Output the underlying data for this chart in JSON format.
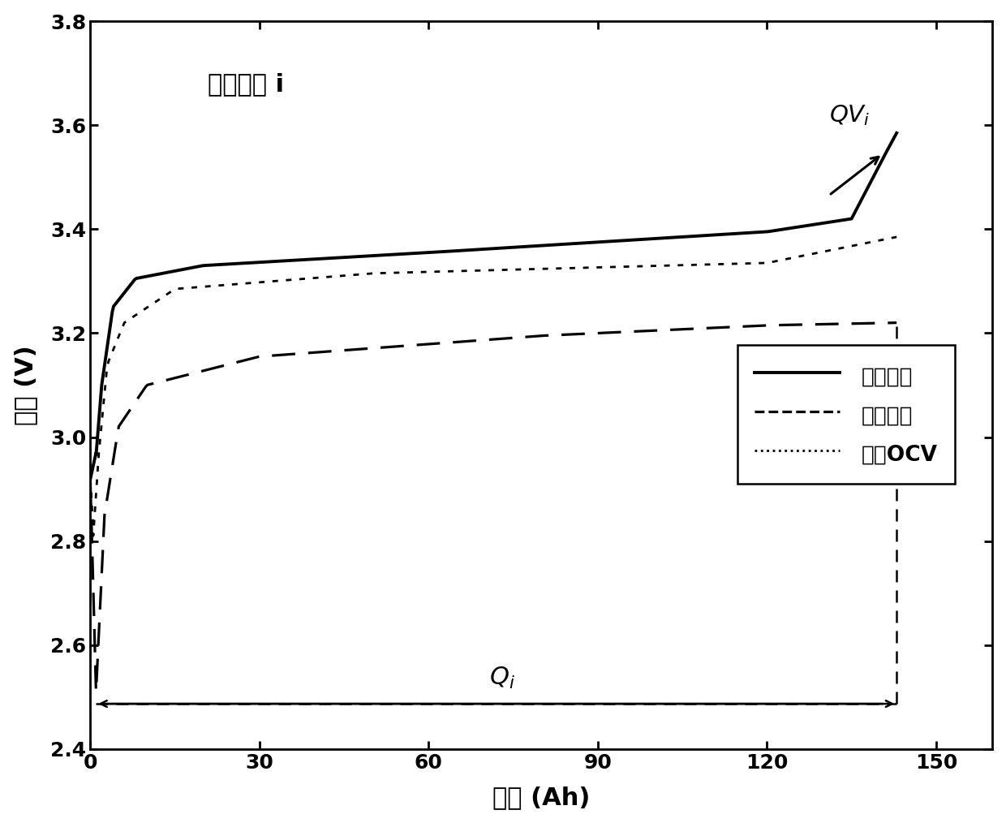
{
  "title": "单体电池 i",
  "xlabel": "容量 (Ah)",
  "ylabel": "电压 (V)",
  "xlim": [
    0,
    160
  ],
  "ylim": [
    2.4,
    3.8
  ],
  "xticks": [
    0,
    30,
    60,
    90,
    120,
    150
  ],
  "yticks": [
    2.4,
    2.6,
    2.8,
    3.0,
    3.2,
    3.4,
    3.6,
    3.8
  ],
  "legend_labels": [
    "充电曲线",
    "放电曲线",
    "近似OCV"
  ],
  "qi_x": 143,
  "qi_y": 2.487,
  "background_color": "#ffffff",
  "line_color": "#000000",
  "figsize": [
    12.4,
    10.14
  ],
  "dpi": 100
}
